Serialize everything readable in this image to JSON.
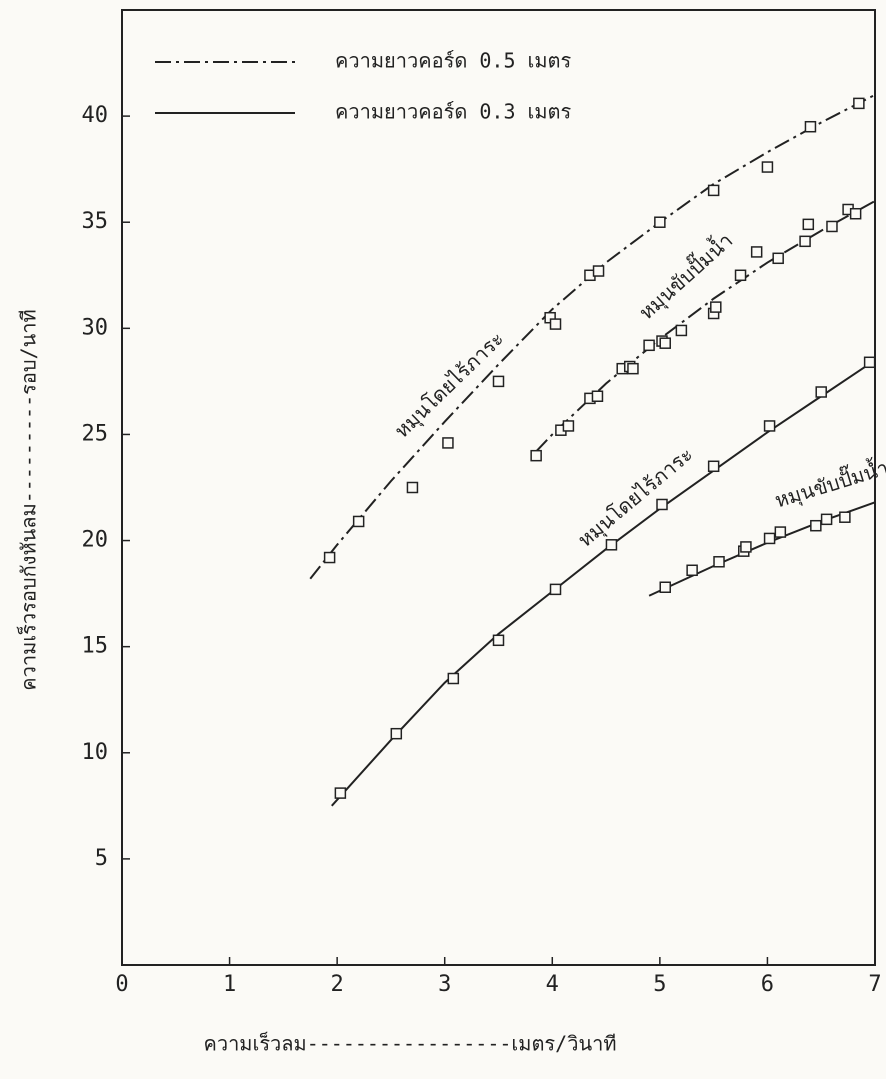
{
  "chart_data": {
    "type": "scatter",
    "x_label": "ความเร็วลม-----------------เมตร/วินาที",
    "y_label": "ความเร็วรอบกังหันลม---------รอบ/นาที",
    "xlim": [
      0,
      7
    ],
    "xticks": [
      0,
      1,
      2,
      3,
      4,
      5,
      6,
      7
    ],
    "ylim": [
      0,
      45
    ],
    "yticks": [
      5,
      10,
      15,
      20,
      25,
      30,
      35,
      40
    ],
    "grid": false,
    "color": "#222222",
    "legend_position": "upper left",
    "legend": [
      {
        "label": "ความยาวคอร์ด 0.5 เมตร",
        "line_style": "dash-dot"
      },
      {
        "label": "ความยาวคอร์ด 0.3 เมตร",
        "line_style": "solid"
      }
    ],
    "series": [
      {
        "label": "หมุนโดยไร้ภาระ",
        "line_style": "dash-dot",
        "x": [
          1.93,
          2.2,
          2.7,
          3.03,
          3.5,
          3.98,
          4.03,
          4.35,
          4.43,
          5.0,
          5.5,
          6.0,
          6.4,
          6.85
        ],
        "values": [
          19.2,
          20.9,
          22.5,
          24.6,
          27.5,
          30.5,
          30.2,
          32.5,
          32.7,
          35.0,
          36.5,
          37.6,
          39.5,
          40.6
        ],
        "fit": {
          "x": [
            1.75,
            2,
            2.5,
            3,
            3.5,
            4,
            4.5,
            5,
            5.5,
            6,
            6.5,
            7
          ],
          "values": [
            18.2,
            19.8,
            22.8,
            25.6,
            28.3,
            30.9,
            33.1,
            35.0,
            36.8,
            38.3,
            39.7,
            41.0
          ]
        }
      },
      {
        "label": "หมุนขับปั๊มน้ำ",
        "line_style": "dash-dot",
        "x": [
          3.85,
          4.08,
          4.15,
          4.35,
          4.42,
          4.65,
          4.72,
          4.75,
          4.9,
          5.02,
          5.05,
          5.2,
          5.5,
          5.52,
          5.75,
          5.9,
          6.1,
          6.35,
          6.38,
          6.6,
          6.75,
          6.82
        ],
        "values": [
          24.0,
          25.2,
          25.4,
          26.7,
          26.8,
          28.1,
          28.2,
          28.1,
          29.2,
          29.4,
          29.3,
          29.9,
          30.7,
          31.0,
          32.5,
          33.6,
          33.3,
          34.1,
          34.9,
          34.8,
          35.6,
          35.4
        ],
        "fit": {
          "x": [
            3.85,
            4,
            4.5,
            5,
            5.5,
            6,
            6.5,
            7
          ],
          "values": [
            24.2,
            25.0,
            27.4,
            29.5,
            31.4,
            33.1,
            34.6,
            36.0
          ]
        }
      },
      {
        "label": "หมุนโดยไร้ภาระ",
        "line_style": "solid",
        "x": [
          2.03,
          2.55,
          3.08,
          3.5,
          4.03,
          4.55,
          5.02,
          5.5,
          6.02,
          6.5,
          6.95
        ],
        "values": [
          8.1,
          10.9,
          13.5,
          15.3,
          17.7,
          19.8,
          21.7,
          23.5,
          25.4,
          27.0,
          28.4
        ],
        "fit": {
          "x": [
            1.95,
            2.5,
            3,
            3.5,
            4,
            4.5,
            5,
            5.5,
            6,
            6.5,
            7
          ],
          "values": [
            7.5,
            10.6,
            13.3,
            15.6,
            17.6,
            19.6,
            21.5,
            23.3,
            25.1,
            26.8,
            28.5
          ]
        }
      },
      {
        "label": "หมุนขับปั๊มน้ำ",
        "line_style": "solid",
        "x": [
          5.05,
          5.3,
          5.55,
          5.78,
          5.8,
          6.02,
          6.12,
          6.45,
          6.55,
          6.72
        ],
        "values": [
          17.8,
          18.6,
          19.0,
          19.5,
          19.7,
          20.1,
          20.4,
          20.7,
          21.0,
          21.1
        ],
        "fit": {
          "x": [
            4.9,
            5.5,
            6,
            6.5,
            7
          ],
          "values": [
            17.4,
            18.8,
            19.9,
            20.9,
            21.8
          ]
        }
      }
    ]
  }
}
